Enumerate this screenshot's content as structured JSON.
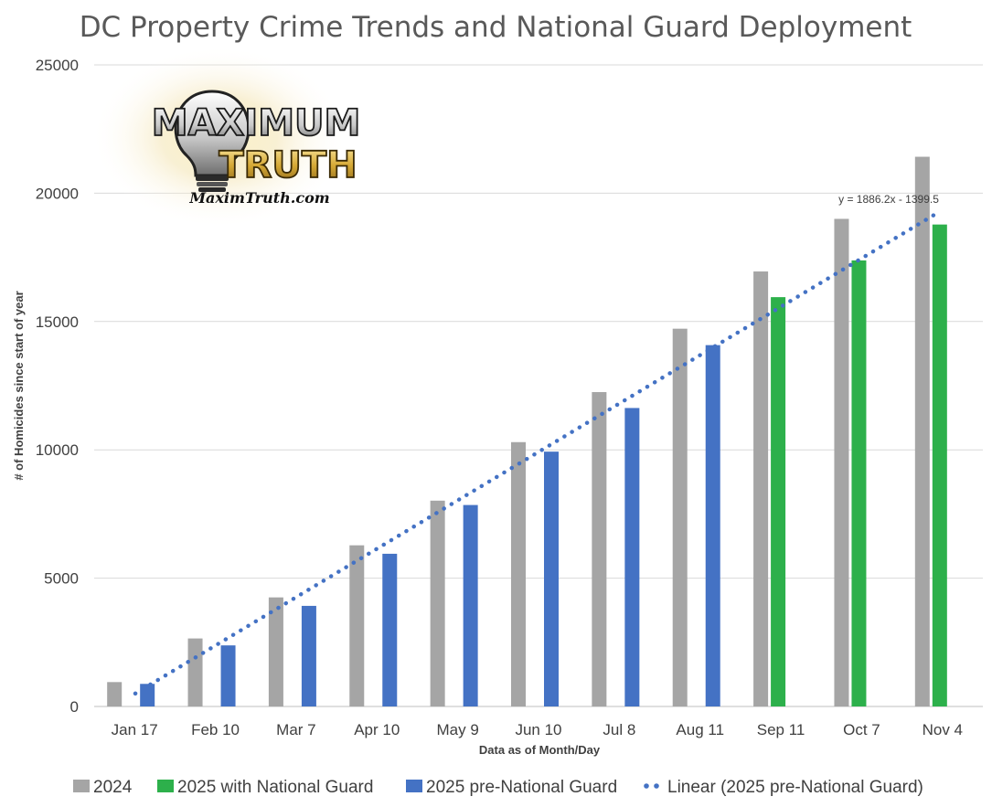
{
  "title": "DC Property Crime Trends and National Guard Deployment",
  "logo": {
    "line1": "MAXIMUM",
    "line2": "TRUTH",
    "url": "MaximTruth.com"
  },
  "chart_data": {
    "type": "bar",
    "title": "DC Property Crime Trends and National Guard Deployment",
    "xlabel": "Data as of Month/Day",
    "ylabel": "# of Homicides since start of year",
    "ylim": [
      0,
      25000
    ],
    "y_ticks": [
      0,
      5000,
      10000,
      15000,
      20000,
      25000
    ],
    "grid": true,
    "legend_position": "bottom",
    "categories": [
      "Jan 17",
      "Feb 10",
      "Mar 7",
      "Apr 10",
      "May 9",
      "Jun 10",
      "Jul 8",
      "Aug 11",
      "Sep 11",
      "Oct 7",
      "Nov 4"
    ],
    "series": [
      {
        "name": "2024",
        "color": "#A5A5A5",
        "values": [
          950,
          2650,
          4250,
          6280,
          8020,
          10300,
          12250,
          14720,
          16950,
          19000,
          21420
        ]
      },
      {
        "name": "2025 with National Guard",
        "color": "#2DB04B",
        "values": [
          null,
          null,
          null,
          null,
          null,
          null,
          null,
          null,
          15950,
          17380,
          18780
        ]
      },
      {
        "name": "2025 pre-National Guard",
        "color": "#4472C4",
        "values": [
          880,
          2380,
          3920,
          5950,
          7850,
          9930,
          11630,
          14080,
          null,
          null,
          null
        ]
      }
    ],
    "trendline": {
      "name": "Linear (2025 pre-National Guard)",
      "color": "#4472C4",
      "style": "dotted",
      "slope": 1886.2,
      "intercept": -1399.5,
      "x_start": 0.5,
      "x_end": 11.5,
      "equation_label": "y = 1886.2x - 1399.5"
    },
    "legend": [
      {
        "label": "2024",
        "kind": "box",
        "color": "#A5A5A5"
      },
      {
        "label": "2025 with National Guard",
        "kind": "box",
        "color": "#2DB04B"
      },
      {
        "label": "2025 pre-National Guard",
        "kind": "box",
        "color": "#4472C4"
      },
      {
        "label": "Linear (2025 pre-National Guard)",
        "kind": "dots",
        "color": "#4472C4"
      }
    ]
  }
}
